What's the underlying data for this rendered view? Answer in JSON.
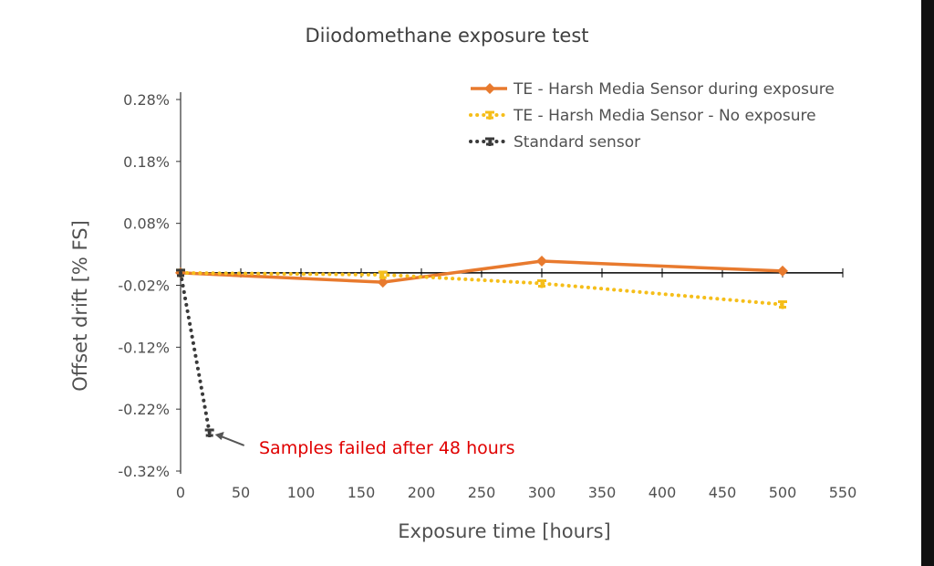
{
  "chart_data": {
    "type": "line",
    "title": "Diiodomethane exposure test",
    "xlabel": "Exposure time [hours]",
    "ylabel": "Offset drift [% FS]",
    "xlim": [
      0,
      550
    ],
    "ylim": [
      -0.32,
      0.28
    ],
    "x_ticks": [
      "0",
      "50",
      "100",
      "150",
      "200",
      "250",
      "300",
      "350",
      "400",
      "450",
      "500",
      "550"
    ],
    "y_ticks": [
      "0.28%",
      "0.18%",
      "0.08%",
      "-0.02%",
      "-0.12%",
      "-0.22%",
      "-0.32%"
    ],
    "legend_position": "top-right",
    "series": [
      {
        "name": "TE - Harsh Media Sensor during exposure",
        "color": "#E87A2E",
        "style": "solid",
        "marker": "diamond",
        "x": [
          0,
          168,
          300,
          500
        ],
        "y": [
          0,
          -0.015,
          0.019,
          0.003
        ]
      },
      {
        "name": "TE - Harsh Media Sensor - No exposure",
        "color": "#F5BE1A",
        "style": "dotted",
        "marker": "star",
        "x": [
          0,
          168,
          300,
          500
        ],
        "y": [
          0,
          -0.003,
          -0.017,
          -0.051
        ]
      },
      {
        "name": "Standard sensor",
        "color": "#3A3A3A",
        "style": "dotted",
        "marker": "star",
        "x": [
          0,
          24
        ],
        "y": [
          0,
          -0.258
        ]
      }
    ],
    "annotation": {
      "text": "Samples failed after 48 hours",
      "color": "#E00000",
      "x": 24,
      "y": -0.258
    }
  }
}
